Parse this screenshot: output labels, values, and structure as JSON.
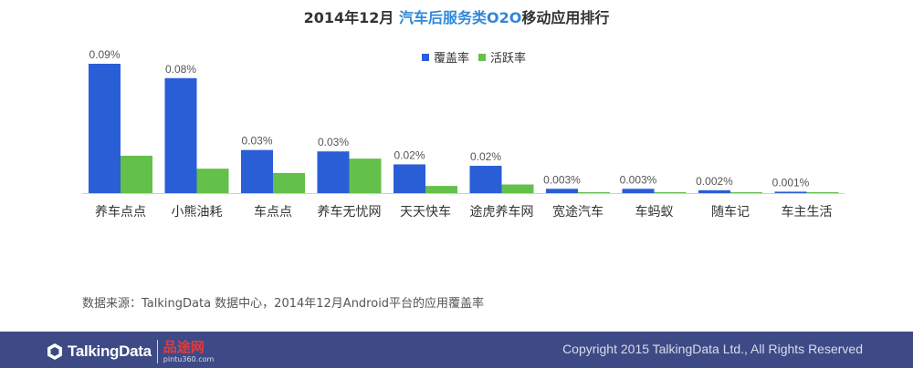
{
  "title_prefix": "2014年12月 ",
  "title_highlight": "汽车后服务类O2O",
  "title_suffix": "移动应用排行",
  "legend": {
    "coverage": "覆盖率",
    "activity": "活跃率"
  },
  "colors": {
    "coverage": "#2a5ed6",
    "activity": "#63c04a",
    "axis": "#cfcfcf",
    "footer": "#3e4a86",
    "title_highlight": "#2f88d8"
  },
  "source_text": "数据来源：TalkingData 数据中心，2014年12月Android平台的应用覆盖率",
  "footer": {
    "logo_text": "TalkingData",
    "partner_name": "品途网",
    "partner_url": "pintu360.com",
    "copyright": "Copyright 2015 TalkingData Ltd., All Rights Reserved"
  },
  "chart_data": {
    "type": "bar",
    "categories": [
      "养车点点",
      "小熊油耗",
      "车点点",
      "养车无忧网",
      "天天快车",
      "途虎养车网",
      "宽途汽车",
      "车蚂蚁",
      "随车记",
      "车主生活"
    ],
    "series": [
      {
        "name": "覆盖率",
        "values": [
          0.09,
          0.08,
          0.03,
          0.029,
          0.02,
          0.019,
          0.003,
          0.003,
          0.002,
          0.001
        ]
      },
      {
        "name": "活跃率",
        "values": [
          0.026,
          0.017,
          0.014,
          0.024,
          0.005,
          0.006,
          0.0005,
          0.0007,
          0.0005,
          0.0003
        ]
      }
    ],
    "data_labels": [
      "0.09%",
      "0.08%",
      "0.03%",
      "0.03%",
      "0.02%",
      "0.02%",
      "0.003%",
      "0.003%",
      "0.002%",
      "0.001%"
    ],
    "ylim": [
      0,
      0.09
    ],
    "legend_position": "top-center",
    "grid": false
  }
}
